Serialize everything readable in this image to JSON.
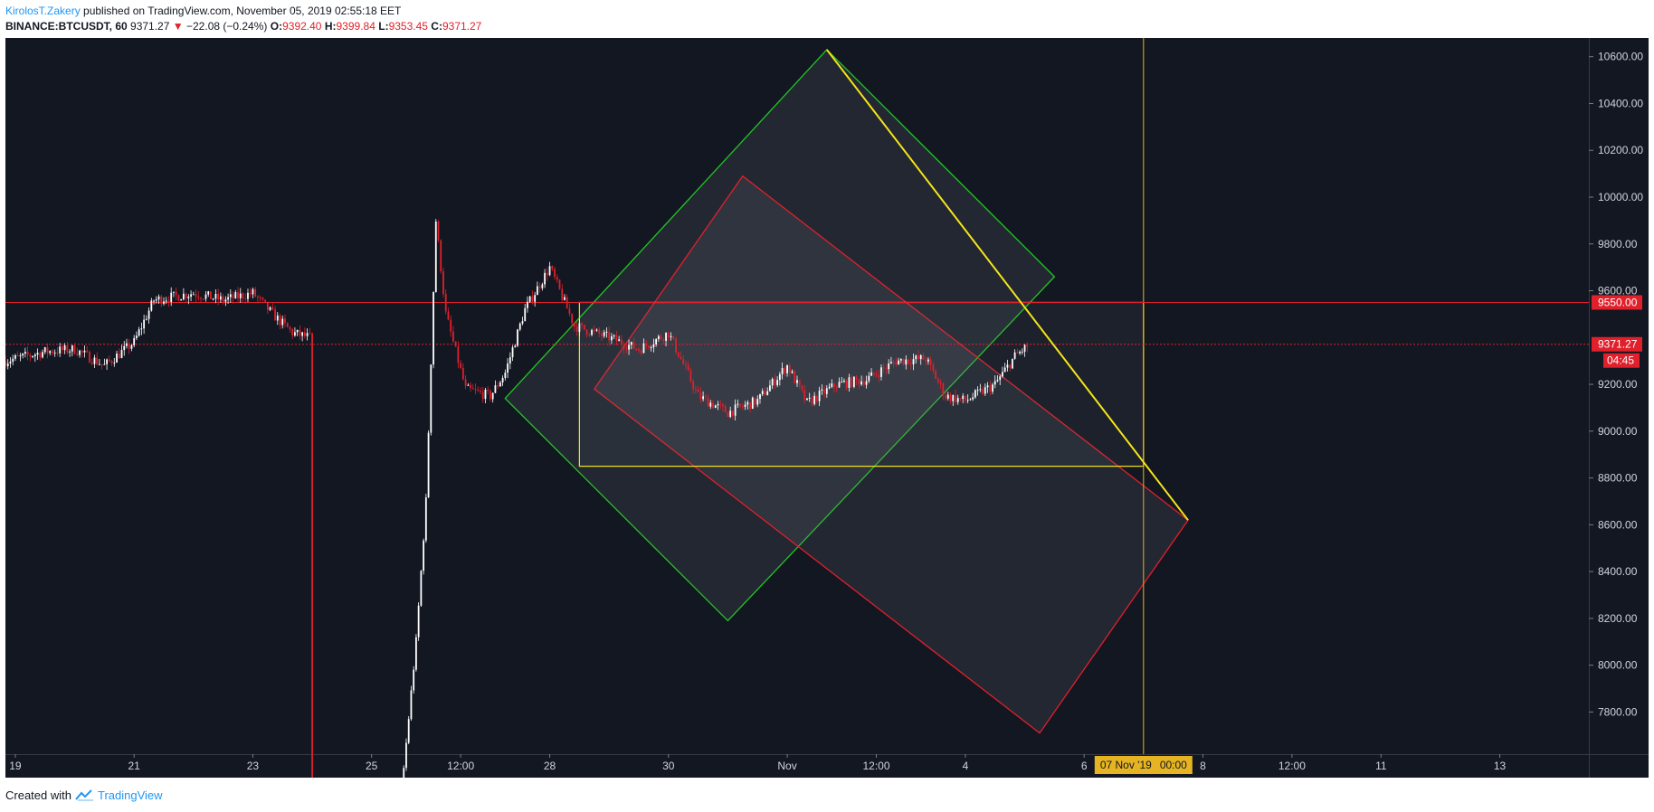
{
  "header": {
    "author": "KirolosT.Zakery",
    "published_text": "published on TradingView.com, November 05, 2019 02:55:18 EET"
  },
  "symbol": {
    "ticker": "BINANCE:BTCUSDT, 60",
    "last": "9371.27",
    "change_arrow": "▼",
    "change": "−22.08 (−0.24%)",
    "o_label": "O:",
    "o": "9392.40",
    "h_label": "H:",
    "h": "9399.84",
    "l_label": "L:",
    "l": "9353.45",
    "c_label": "C:",
    "c": "9371.27"
  },
  "footer": {
    "created_with": "Created with",
    "brand": "TradingView"
  },
  "colors": {
    "background": "#131722",
    "candle_up": "#ffffff",
    "candle_down": "#e0202b",
    "green_box": "#22c622",
    "red_box": "#e0202b",
    "yellow": "#f5e61a",
    "axis_text": "#d1d4dc"
  },
  "chart_data": {
    "type": "candlestick",
    "title": "BINANCE:BTCUSDT, 60",
    "ylim": [
      7620,
      10680
    ],
    "y_ticks": [
      {
        "label": "10600.00",
        "value": 10600
      },
      {
        "label": "10400.00",
        "value": 10400
      },
      {
        "label": "10200.00",
        "value": 10200
      },
      {
        "label": "10000.00",
        "value": 10000
      },
      {
        "label": "9800.00",
        "value": 9800
      },
      {
        "label": "9600.00",
        "value": 9600
      },
      {
        "label": "9200.00",
        "value": 9200
      },
      {
        "label": "9000.00",
        "value": 9000
      },
      {
        "label": "8800.00",
        "value": 8800
      },
      {
        "label": "8600.00",
        "value": 8600
      },
      {
        "label": "8400.00",
        "value": 8400
      },
      {
        "label": "8200.00",
        "value": 8200
      },
      {
        "label": "8000.00",
        "value": 8000
      },
      {
        "label": "7800.00",
        "value": 7800
      }
    ],
    "x_range": [
      "2019-10-18 20:00",
      "2019-11-14 12:00"
    ],
    "x_ticks": [
      {
        "label": "19",
        "t": "2019-10-19 00:00"
      },
      {
        "label": "21",
        "t": "2019-10-21 00:00"
      },
      {
        "label": "23",
        "t": "2019-10-23 00:00"
      },
      {
        "label": "25",
        "t": "2019-10-25 00:00"
      },
      {
        "label": "12:00",
        "t": "2019-10-26 12:00"
      },
      {
        "label": "28",
        "t": "2019-10-28 00:00"
      },
      {
        "label": "30",
        "t": "2019-10-30 00:00"
      },
      {
        "label": "Nov",
        "t": "2019-11-01 00:00"
      },
      {
        "label": "12:00",
        "t": "2019-11-02 12:00"
      },
      {
        "label": "4",
        "t": "2019-11-04 00:00"
      },
      {
        "label": "6",
        "t": "2019-11-06 00:00"
      },
      {
        "label": "8",
        "t": "2019-11-08 00:00"
      },
      {
        "label": "12:00",
        "t": "2019-11-09 12:00"
      },
      {
        "label": "11",
        "t": "2019-11-11 00:00"
      },
      {
        "label": "13",
        "t": "2019-11-13 00:00"
      }
    ],
    "price_path": [
      [
        "2019-10-18 20:00",
        9300
      ],
      [
        "2019-10-19 12:00",
        9340
      ],
      [
        "2019-10-20 00:00",
        9350
      ],
      [
        "2019-10-20 12:00",
        9280
      ],
      [
        "2019-10-21 00:00",
        9380
      ],
      [
        "2019-10-21 08:00",
        9560
      ],
      [
        "2019-10-22 00:00",
        9590
      ],
      [
        "2019-10-22 12:00",
        9560
      ],
      [
        "2019-10-23 00:00",
        9590
      ],
      [
        "2019-10-23 08:00",
        9500
      ],
      [
        "2019-10-23 16:00",
        9420
      ],
      [
        "2019-10-23 23:00",
        9400
      ],
      [
        "2019-10-24 00:00",
        7460
      ],
      [
        "2019-10-25 12:00",
        7450
      ],
      [
        "2019-10-25 18:00",
        8100
      ],
      [
        "2019-10-25 22:00",
        8700
      ],
      [
        "2019-10-26 02:00",
        9900
      ],
      [
        "2019-10-26 06:00",
        9500
      ],
      [
        "2019-10-26 14:00",
        9180
      ],
      [
        "2019-10-27 00:00",
        9150
      ],
      [
        "2019-10-27 06:00",
        9250
      ],
      [
        "2019-10-27 14:00",
        9520
      ],
      [
        "2019-10-28 00:00",
        9700
      ],
      [
        "2019-10-28 10:00",
        9450
      ],
      [
        "2019-10-29 00:00",
        9400
      ],
      [
        "2019-10-29 12:00",
        9350
      ],
      [
        "2019-10-30 00:00",
        9420
      ],
      [
        "2019-10-30 12:00",
        9150
      ],
      [
        "2019-10-31 00:00",
        9080
      ],
      [
        "2019-10-31 12:00",
        9130
      ],
      [
        "2019-11-01 00:00",
        9280
      ],
      [
        "2019-11-01 08:00",
        9120
      ],
      [
        "2019-11-01 20:00",
        9200
      ],
      [
        "2019-11-02 08:00",
        9220
      ],
      [
        "2019-11-02 20:00",
        9300
      ],
      [
        "2019-11-03 08:00",
        9310
      ],
      [
        "2019-11-03 16:00",
        9150
      ],
      [
        "2019-11-04 00:00",
        9130
      ],
      [
        "2019-11-04 12:00",
        9200
      ],
      [
        "2019-11-04 20:00",
        9320
      ],
      [
        "2019-11-05 02:00",
        9371.27
      ]
    ],
    "horizontal_lines": [
      {
        "price": 9550,
        "label": "9550.00",
        "style": "solid"
      },
      {
        "price": 9371.27,
        "label": "9371.27",
        "countdown": "04:45",
        "style": "dotted"
      }
    ],
    "vertical_line": {
      "t": "2019-11-07 00:00",
      "label_date": "07 Nov '19",
      "label_time": "00:00"
    },
    "drawings": {
      "green_rectangle": [
        [
          "2019-10-27 06:00",
          9140
        ],
        [
          "2019-11-01 16:00",
          10630
        ],
        [
          "2019-11-05 12:00",
          9660
        ],
        [
          "2019-10-31 00:00",
          8190
        ]
      ],
      "red_rectangle": [
        [
          "2019-10-28 18:00",
          9180
        ],
        [
          "2019-10-31 06:00",
          10090
        ],
        [
          "2019-11-07 18:00",
          8620
        ],
        [
          "2019-11-05 06:00",
          7710
        ]
      ],
      "yellow_rectangle": [
        [
          "2019-10-28 12:00",
          9550
        ],
        [
          "2019-11-07 00:00",
          8850
        ]
      ],
      "yellow_line": [
        [
          "2019-11-01 16:00",
          10630
        ],
        [
          "2019-11-07 18:00",
          8620
        ]
      ]
    }
  }
}
